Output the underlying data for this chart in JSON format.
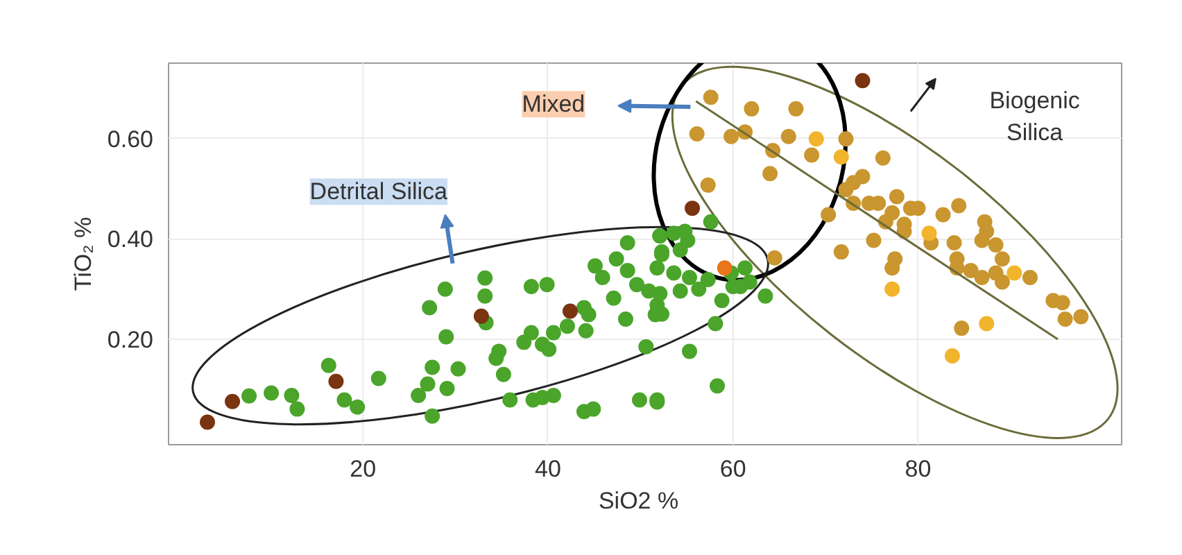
{
  "chart_data": {
    "type": "scatter",
    "xlabel": "SiO2   %",
    "ylabel": "TiO₂ %",
    "annotations": [
      "Mixed",
      "Detrital Silica",
      "Biogenic\nSilica"
    ],
    "xlim": [
      -1,
      102
    ],
    "ylim": [
      -0.01,
      0.75
    ],
    "xticks": [
      20,
      40,
      60,
      80
    ],
    "yticks": [
      {
        "value": 0.2,
        "label": "0.20"
      },
      {
        "value": 0.4,
        "label": "0.40"
      },
      {
        "value": 0.6,
        "label": "0.60"
      }
    ],
    "grid": true,
    "marker": "circle",
    "series": [
      {
        "color": "#4aa52a",
        "x": [
          7.7,
          10.1,
          12.3,
          12.9,
          16.3,
          18.0,
          19.4,
          21.7,
          27.2,
          28.9,
          27.5,
          26.0,
          27.0,
          29.0,
          30.3,
          29.1,
          27.5,
          33.2,
          33.2,
          33.3,
          34.7,
          34.4,
          35.2,
          35.9,
          38.2,
          39.9,
          37.4,
          38.2,
          39.4,
          40.1,
          40.6,
          42.1,
          43.9,
          44.1,
          44.4,
          45.1,
          45.9,
          47.4,
          48.6,
          48.6,
          47.1,
          48.4,
          49.6,
          50.9,
          50.6,
          38.4,
          39.4,
          40.6,
          43.9,
          44.9,
          49.9,
          51.8,
          51.8,
          52.3,
          52.1,
          51.6,
          52.1,
          53.6,
          54.8,
          52.3,
          54.3,
          55.1,
          57.6,
          51.8,
          53.6,
          55.3,
          57.3,
          59.8,
          61.3,
          61.8,
          60.8,
          52.1,
          54.3,
          56.3,
          58.8,
          60.0,
          63.5,
          52.3,
          58.1,
          55.3,
          58.3,
          51.8
        ],
        "values": [
          0.087,
          0.093,
          0.088,
          0.061,
          0.148,
          0.079,
          0.065,
          0.122,
          0.263,
          0.3,
          0.144,
          0.088,
          0.111,
          0.205,
          0.141,
          0.102,
          0.047,
          0.322,
          0.286,
          0.233,
          0.176,
          0.162,
          0.13,
          0.079,
          0.305,
          0.309,
          0.194,
          0.213,
          0.19,
          0.18,
          0.213,
          0.226,
          0.263,
          0.217,
          0.249,
          0.346,
          0.323,
          0.36,
          0.392,
          0.337,
          0.282,
          0.24,
          0.309,
          0.296,
          0.185,
          0.079,
          0.084,
          0.088,
          0.056,
          0.061,
          0.079,
          0.079,
          0.268,
          0.374,
          0.406,
          0.249,
          0.406,
          0.411,
          0.415,
          0.369,
          0.378,
          0.397,
          0.434,
          0.342,
          0.332,
          0.323,
          0.319,
          0.332,
          0.342,
          0.314,
          0.305,
          0.291,
          0.296,
          0.3,
          0.277,
          0.305,
          0.286,
          0.25,
          0.231,
          0.176,
          0.107,
          0.075
        ]
      },
      {
        "color": "#7a3410",
        "x": [
          3.2,
          5.9,
          17.1,
          32.8,
          42.4,
          55.6,
          74.0
        ],
        "values": [
          0.035,
          0.076,
          0.116,
          0.246,
          0.256,
          0.461,
          0.715
        ]
      },
      {
        "color": "#e8761a",
        "x": [
          59.1
        ],
        "values": [
          0.342
        ]
      },
      {
        "color": "#c9962f",
        "x": [
          57.6,
          62.0,
          66.8,
          56.1,
          59.8,
          61.3,
          66.0,
          64.3,
          68.5,
          64.0,
          72.2,
          57.3,
          76.2,
          74.0,
          73.0,
          70.3,
          73.0,
          74.7,
          75.7,
          77.7,
          77.2,
          79.2,
          80.0,
          82.7,
          84.4,
          76.5,
          78.5,
          78.5,
          71.7,
          75.2,
          81.4,
          83.9,
          84.2,
          77.5,
          77.2,
          84.2,
          85.7,
          87.2,
          87.4,
          86.9,
          88.4,
          89.1,
          89.1,
          92.1,
          94.6,
          95.6,
          95.9,
          97.6,
          64.5,
          84.7,
          86.9,
          88.4,
          72.2
        ],
        "values": [
          0.682,
          0.659,
          0.659,
          0.609,
          0.604,
          0.613,
          0.604,
          0.576,
          0.567,
          0.53,
          0.599,
          0.507,
          0.561,
          0.524,
          0.512,
          0.448,
          0.471,
          0.471,
          0.471,
          0.484,
          0.452,
          0.461,
          0.461,
          0.448,
          0.466,
          0.434,
          0.429,
          0.415,
          0.374,
          0.397,
          0.392,
          0.392,
          0.36,
          0.36,
          0.342,
          0.342,
          0.337,
          0.434,
          0.415,
          0.397,
          0.388,
          0.36,
          0.314,
          0.323,
          0.277,
          0.273,
          0.24,
          0.245,
          0.362,
          0.222,
          0.323,
          0.332,
          0.498
        ]
      },
      {
        "color": "#f2b42c",
        "x": [
          69.0,
          71.7,
          81.2,
          87.4,
          83.7,
          77.2,
          90.4
        ],
        "values": [
          0.599,
          0.563,
          0.411,
          0.231,
          0.167,
          0.3,
          0.332
        ]
      },
      {
        "type": "line",
        "marker": "none",
        "color": "#6b6b3a",
        "x": [
          56.0,
          95.1
        ],
        "values": [
          0.674,
          0.2
        ]
      }
    ]
  }
}
